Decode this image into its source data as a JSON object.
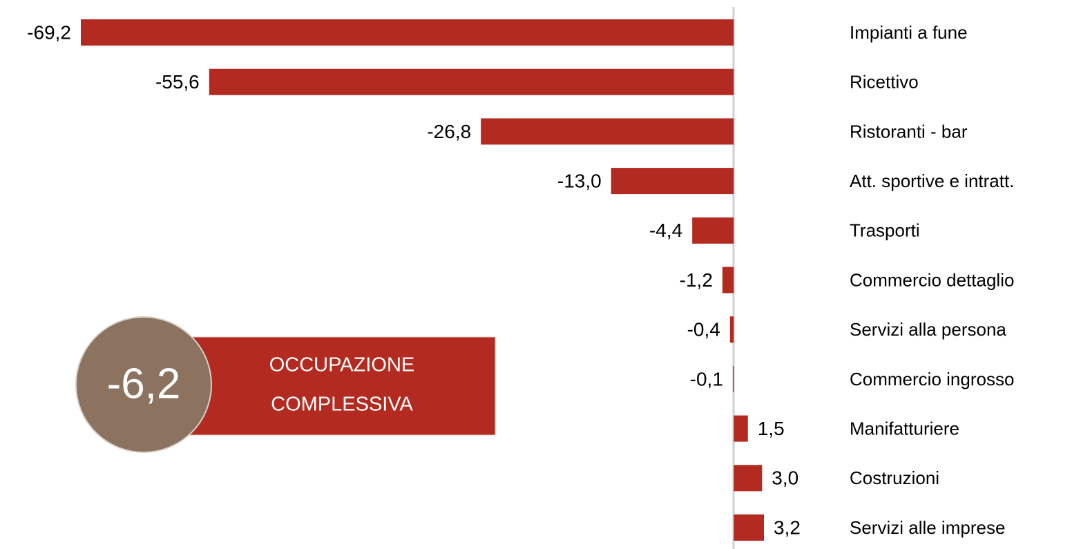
{
  "chart_data": {
    "type": "hbar",
    "categories": [
      "Impianti a fune",
      "Ricettivo",
      "Ristoranti - bar",
      "Att. sportive e intratt.",
      "Trasporti",
      "Commercio dettaglio",
      "Servizi alla persona",
      "Commercio ingrosso",
      "Manifatturiere",
      "Costruzioni",
      "Servizi alle imprese"
    ],
    "values": [
      -69.2,
      -55.6,
      -26.8,
      -13.0,
      -4.4,
      -1.2,
      -0.4,
      -0.1,
      1.5,
      3.0,
      3.2
    ],
    "value_labels": [
      "-69,2",
      "-55,6",
      "-26,8",
      "-13,0",
      "-4,4",
      "-1,2",
      "-0,4",
      "-0,1",
      "1,5",
      "3,0",
      "3,2"
    ],
    "color": "#b22a20",
    "xlim": [
      -69.2,
      3.2
    ],
    "annotation": {
      "lines": [
        "OCCUPAZIONE",
        "COMPLESSIVA"
      ],
      "value": -6.2,
      "value_label": "-6,2",
      "color": "#b22a20",
      "circle_color": "#8b7360"
    }
  }
}
